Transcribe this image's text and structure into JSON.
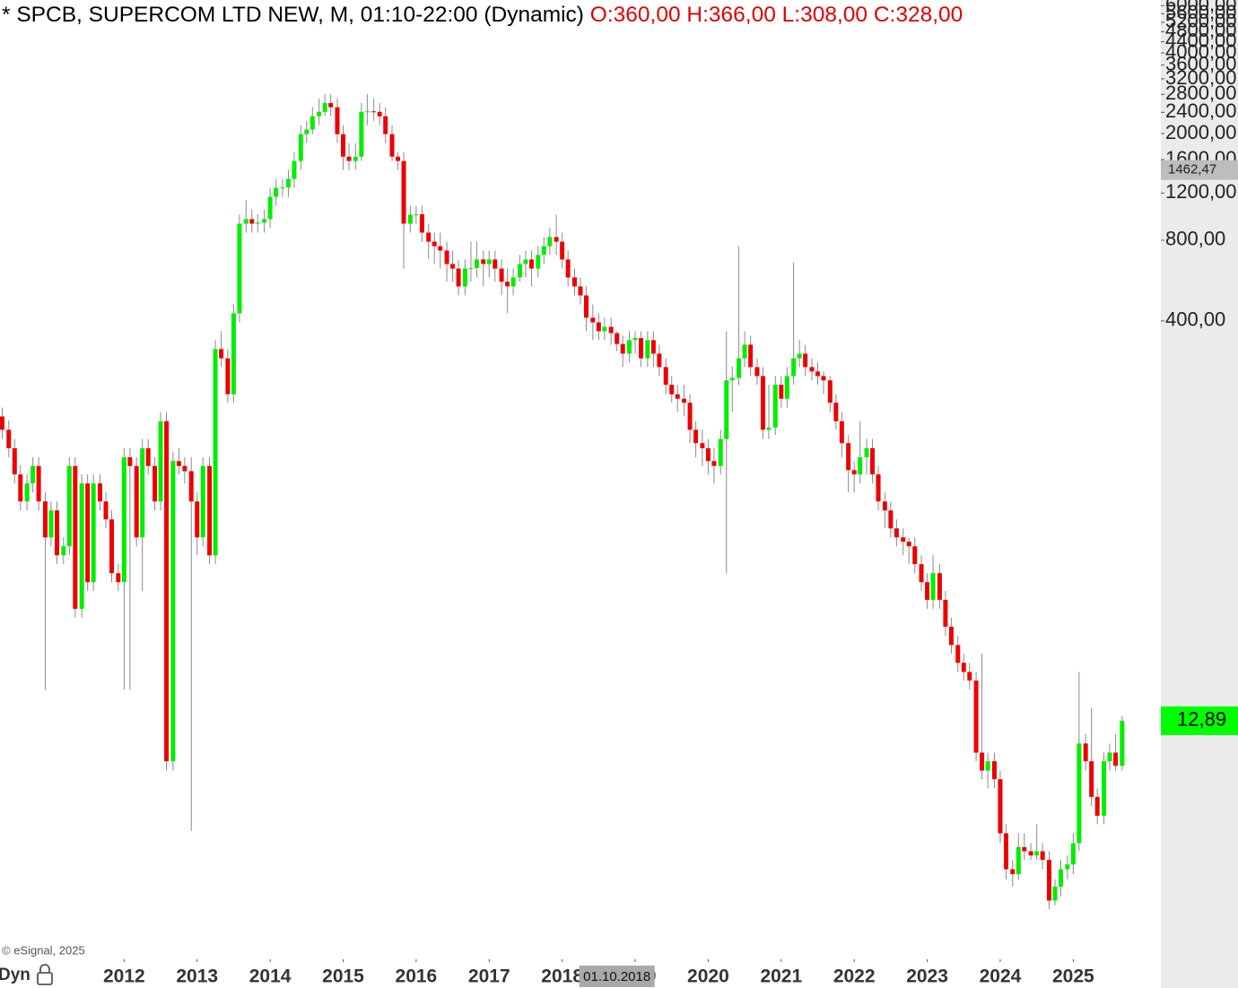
{
  "chart_data": {
    "type": "candlestick",
    "title": "* SPCB, SUPERCOM LTD NEW, M, 01:10-22:00 (Dynamic)",
    "hover": {
      "open": {
        "value": 360,
        "label": "O:360,00"
      },
      "high": {
        "value": 366,
        "label": "H:366,00"
      },
      "low": {
        "value": 308,
        "label": "L:308,00"
      },
      "close": {
        "value": 328,
        "label": "C:328,00"
      }
    },
    "crosshair": {
      "x": 2018.75,
      "label": "01.10.2018"
    },
    "last_price": {
      "value": 12.89,
      "label": "12,89"
    },
    "marker": {
      "value": 1462.47,
      "label": "1462,47"
    },
    "credit": "© eSignal, 2025",
    "mode_label": "Dyn",
    "log_scale": true,
    "grid": false,
    "up_color": "#00ee00",
    "down_color": "#ee0000",
    "wick_color": "#8a8a8a",
    "xlim": [
      2010.3,
      2026.2
    ],
    "ylim": [
      1.66,
      6300
    ],
    "xticks": [
      2012,
      2013,
      2014,
      2015,
      2016,
      2017,
      2018,
      2019,
      2020,
      2021,
      2022,
      2023,
      2024,
      2025
    ],
    "yticks": [
      {
        "value": 400,
        "label": "400,00"
      },
      {
        "value": 800,
        "label": "800,00"
      },
      {
        "value": 1200,
        "label": "1200,00"
      },
      {
        "value": 1600,
        "label": "1600,00"
      },
      {
        "value": 2000,
        "label": "2000,00"
      },
      {
        "value": 2400,
        "label": "2400,00"
      },
      {
        "value": 2800,
        "label": "2800,00"
      },
      {
        "value": 3200,
        "label": "3200,00"
      },
      {
        "value": 3600,
        "label": "3600,00"
      },
      {
        "value": 4000,
        "label": "4000,00"
      },
      {
        "value": 4400,
        "label": "4400,00"
      },
      {
        "value": 4800,
        "label": "4800,00"
      },
      {
        "value": 5200,
        "label": "5200,00"
      },
      {
        "value": 5600,
        "label": "5600,00"
      },
      {
        "value": 6000,
        "label": "6000,00"
      }
    ],
    "x": [
      2010.33,
      2010.42,
      2010.5,
      2010.58,
      2010.67,
      2010.75,
      2010.83,
      2010.92,
      2011,
      2011.08,
      2011.17,
      2011.25,
      2011.33,
      2011.42,
      2011.5,
      2011.58,
      2011.67,
      2011.75,
      2011.83,
      2011.92,
      2012,
      2012.08,
      2012.17,
      2012.25,
      2012.33,
      2012.42,
      2012.5,
      2012.58,
      2012.67,
      2012.75,
      2012.83,
      2012.92,
      2013,
      2013.08,
      2013.17,
      2013.25,
      2013.33,
      2013.42,
      2013.5,
      2013.58,
      2013.67,
      2013.75,
      2013.83,
      2013.92,
      2014,
      2014.08,
      2014.17,
      2014.25,
      2014.33,
      2014.42,
      2014.5,
      2014.58,
      2014.67,
      2014.75,
      2014.83,
      2014.92,
      2015,
      2015.08,
      2015.17,
      2015.25,
      2015.33,
      2015.42,
      2015.5,
      2015.58,
      2015.67,
      2015.75,
      2015.83,
      2015.92,
      2016,
      2016.08,
      2016.17,
      2016.25,
      2016.33,
      2016.42,
      2016.5,
      2016.58,
      2016.67,
      2016.75,
      2016.83,
      2016.92,
      2017,
      2017.08,
      2017.17,
      2017.25,
      2017.33,
      2017.42,
      2017.5,
      2017.58,
      2017.67,
      2017.75,
      2017.83,
      2017.92,
      2018,
      2018.08,
      2018.17,
      2018.25,
      2018.33,
      2018.42,
      2018.5,
      2018.58,
      2018.67,
      2018.75,
      2018.83,
      2018.92,
      2019,
      2019.08,
      2019.17,
      2019.25,
      2019.33,
      2019.42,
      2019.5,
      2019.58,
      2019.67,
      2019.75,
      2019.83,
      2019.92,
      2020,
      2020.08,
      2020.17,
      2020.25,
      2020.33,
      2020.42,
      2020.5,
      2020.58,
      2020.67,
      2020.75,
      2020.83,
      2020.92,
      2021,
      2021.08,
      2021.17,
      2021.25,
      2021.33,
      2021.42,
      2021.5,
      2021.58,
      2021.67,
      2021.75,
      2021.83,
      2021.92,
      2022,
      2022.08,
      2022.17,
      2022.25,
      2022.33,
      2022.42,
      2022.5,
      2022.58,
      2022.67,
      2022.75,
      2022.83,
      2022.92,
      2023,
      2023.08,
      2023.17,
      2023.25,
      2023.33,
      2023.42,
      2023.5,
      2023.58,
      2023.67,
      2023.75,
      2023.83,
      2023.92,
      2024,
      2024.08,
      2024.17,
      2024.25,
      2024.33,
      2024.42,
      2024.5,
      2024.58,
      2024.67,
      2024.75,
      2024.83,
      2024.92,
      2025,
      2025.08,
      2025.17,
      2025.25,
      2025.33,
      2025.42,
      2025.5,
      2025.58,
      2025.67
    ],
    "open": [
      176,
      157,
      134,
      107,
      84.8,
      99,
      115,
      84.8,
      62.3,
      78.5,
      53.4,
      57.7,
      115,
      33.7,
      99,
      42.4,
      99,
      84.8,
      72.7,
      45.8,
      42.4,
      124,
      115,
      62.3,
      134,
      115,
      84.8,
      169,
      9.1,
      120,
      115,
      110,
      84.8,
      62.3,
      115,
      53.4,
      314,
      290,
      213,
      427,
      922,
      959,
      922,
      930,
      959,
      1161,
      1254,
      1260,
      1354,
      1580,
      1990,
      2070,
      2321,
      2410,
      2600,
      2507,
      1990,
      1640,
      1580,
      1640,
      2410,
      2420,
      2410,
      2321,
      1990,
      1640,
      1580,
      922,
      996,
      1000,
      854,
      790,
      760,
      732,
      652,
      627,
      538,
      627,
      630,
      678,
      652,
      678,
      627,
      560,
      538,
      581,
      652,
      678,
      627,
      705,
      760,
      822,
      790,
      678,
      581,
      538,
      498,
      411,
      395,
      366,
      380,
      360,
      328,
      302,
      339,
      345,
      290,
      339,
      302,
      269,
      231,
      213,
      205,
      198,
      157,
      140,
      134,
      120,
      115,
      145,
      240,
      245,
      290,
      326,
      269,
      249,
      157,
      160,
      231,
      205,
      249,
      290,
      302,
      269,
      259,
      249,
      240,
      198,
      169,
      140,
      111,
      107,
      124,
      134,
      107,
      84.8,
      78.5,
      67.3,
      62.3,
      60,
      57.7,
      49.5,
      42.4,
      36.4,
      45.8,
      36.4,
      28.9,
      24.7,
      21.2,
      19.6,
      18.2,
      9.8,
      8.4,
      9.1,
      7.8,
      4.9,
      3.6,
      3.45,
      4.35,
      4.2,
      4.05,
      4.2,
      3.9,
      2.75,
      3.1,
      3.6,
      3.75,
      4.5,
      10.6,
      9.1,
      6.7,
      5.7,
      9.1,
      9.8,
      8.75
    ],
    "high": [
      190,
      170,
      145,
      116,
      107,
      124,
      124,
      91.6,
      84.8,
      84.8,
      62.3,
      124,
      124,
      107,
      107,
      107,
      107,
      91.6,
      78.5,
      49.5,
      134,
      134,
      124,
      145,
      145,
      124,
      183,
      183,
      130,
      134,
      124,
      124,
      91.6,
      124,
      124,
      339,
      366,
      314,
      461,
      996,
      1130,
      1040,
      1000,
      1040,
      1254,
      1354,
      1354,
      1463,
      1706,
      2149,
      2230,
      2507,
      2700,
      2810,
      2810,
      2707,
      2149,
      1843,
      1843,
      2600,
      2810,
      2700,
      2600,
      2507,
      2149,
      1706,
      1706,
      1075,
      1075,
      1075,
      922,
      854,
      854,
      790,
      732,
      678,
      678,
      790,
      790,
      732,
      732,
      732,
      678,
      627,
      627,
      705,
      732,
      732,
      760,
      822,
      890,
      996,
      854,
      732,
      627,
      581,
      538,
      461,
      427,
      411,
      411,
      366,
      352,
      366,
      366,
      366,
      366,
      366,
      326,
      290,
      249,
      231,
      231,
      213,
      169,
      157,
      145,
      134,
      157,
      366,
      270,
      760,
      366,
      352,
      290,
      269,
      231,
      249,
      249,
      269,
      660,
      339,
      326,
      290,
      280,
      260,
      249,
      213,
      183,
      150,
      120,
      169,
      145,
      145,
      115,
      91.6,
      84.8,
      72.7,
      67.3,
      62.3,
      62.3,
      53.4,
      45.8,
      53.4,
      49.5,
      39.3,
      31.2,
      26.7,
      22.9,
      21.2,
      19.6,
      22.9,
      9.8,
      9.8,
      8.4,
      5.3,
      3.9,
      4.9,
      4.9,
      4.5,
      5.3,
      4.5,
      4.2,
      3.3,
      3.9,
      4.05,
      4.9,
      19.6,
      11.5,
      14.4,
      7.2,
      9.8,
      10.6,
      11.5,
      13.4
    ],
    "low": [
      145,
      124,
      99,
      78.5,
      78.5,
      91.6,
      78.5,
      16.8,
      57.7,
      49.5,
      49.5,
      53.4,
      31.2,
      31.2,
      39.3,
      39.3,
      78.5,
      67.3,
      42.4,
      39.3,
      16.8,
      16.8,
      57.7,
      39.3,
      107,
      78.5,
      78.5,
      8.4,
      8.4,
      107,
      99,
      5.0,
      53.4,
      57.7,
      49.5,
      49.5,
      269,
      198,
      198,
      395,
      854,
      854,
      854,
      854,
      890,
      1075,
      1161,
      1161,
      1254,
      1463,
      1843,
      1990,
      2149,
      2321,
      2321,
      1843,
      1463,
      1463,
      1463,
      1580,
      2149,
      2230,
      2149,
      1843,
      1580,
      1463,
      627,
      854,
      922,
      790,
      680,
      652,
      627,
      560,
      560,
      498,
      498,
      560,
      581,
      538,
      581,
      560,
      498,
      427,
      498,
      560,
      581,
      538,
      581,
      652,
      705,
      705,
      627,
      538,
      498,
      461,
      366,
      339,
      339,
      339,
      326,
      308,
      269,
      280,
      302,
      269,
      269,
      269,
      249,
      213,
      198,
      183,
      176,
      140,
      124,
      115,
      107,
      99,
      107,
      45.8,
      183,
      231,
      269,
      249,
      231,
      145,
      145,
      150,
      190,
      190,
      231,
      269,
      249,
      240,
      231,
      213,
      183,
      157,
      124,
      91.6,
      91.6,
      99,
      107,
      99,
      78.5,
      67.3,
      62.3,
      57.7,
      53.4,
      49.5,
      45.8,
      39.3,
      33.7,
      33.7,
      33.7,
      26.7,
      22.9,
      19.6,
      18.2,
      16.8,
      9.1,
      7.8,
      7.2,
      7.2,
      4.5,
      3.3,
      3.1,
      3.3,
      3.9,
      3.9,
      3.9,
      3.6,
      2.55,
      2.64,
      2.85,
      3.3,
      3.45,
      4.2,
      8.4,
      6.2,
      5.3,
      5.3,
      8.4,
      8.4,
      8.4
    ],
    "close": [
      157,
      134,
      107,
      84.8,
      99,
      115,
      84.8,
      62.3,
      78.5,
      53.4,
      57.7,
      115,
      33.7,
      99,
      42.4,
      99,
      84.8,
      72.7,
      45.8,
      42.4,
      124,
      115,
      62.3,
      134,
      115,
      84.8,
      169,
      9.1,
      120,
      115,
      110,
      84.8,
      62.3,
      115,
      53.4,
      314,
      290,
      213,
      427,
      922,
      959,
      922,
      930,
      959,
      1161,
      1254,
      1260,
      1354,
      1580,
      1990,
      2070,
      2321,
      2410,
      2600,
      2507,
      1990,
      1640,
      1580,
      1640,
      2410,
      2420,
      2410,
      2321,
      1990,
      1640,
      1580,
      922,
      996,
      1000,
      854,
      790,
      760,
      732,
      652,
      627,
      538,
      627,
      630,
      678,
      652,
      678,
      627,
      560,
      538,
      581,
      652,
      678,
      627,
      705,
      760,
      822,
      790,
      678,
      581,
      538,
      498,
      411,
      395,
      366,
      380,
      360,
      328,
      302,
      339,
      345,
      290,
      339,
      302,
      269,
      231,
      213,
      205,
      198,
      157,
      140,
      134,
      120,
      115,
      145,
      240,
      245,
      290,
      326,
      269,
      249,
      157,
      160,
      231,
      205,
      249,
      290,
      302,
      269,
      259,
      249,
      240,
      198,
      169,
      140,
      111,
      107,
      124,
      134,
      107,
      84.8,
      78.5,
      67.3,
      62.3,
      60,
      57.7,
      49.5,
      42.4,
      36.4,
      45.8,
      36.4,
      28.9,
      24.7,
      21.2,
      19.6,
      18.2,
      9.8,
      8.4,
      9.1,
      7.8,
      4.9,
      3.6,
      3.45,
      4.35,
      4.2,
      4.05,
      4.2,
      3.9,
      2.75,
      3.1,
      3.6,
      3.75,
      4.5,
      10.6,
      9.1,
      6.7,
      5.7,
      9.1,
      9.8,
      8.75,
      12.89
    ]
  }
}
